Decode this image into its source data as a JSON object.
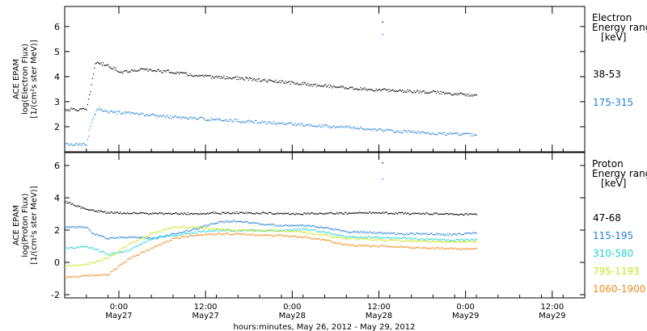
{
  "chart_data": [
    {
      "type": "scatter",
      "panel": "electron",
      "ylabel_lines": [
        "ACE EPAM",
        "log(Electron Flux)",
        "[1/(cm²s ster MeV)]"
      ],
      "ylim": [
        1,
        6.8
      ],
      "yticks": [
        2,
        3,
        4,
        5,
        6
      ],
      "legend_title_lines": [
        "Electron",
        "Energy ranges",
        "[keV]"
      ],
      "series": [
        {
          "name": "38-53",
          "color": "#000000",
          "points": [
            [
              0.0,
              2.7
            ],
            [
              1.0,
              2.7
            ],
            [
              1.2,
              3.6
            ],
            [
              1.4,
              4.6
            ],
            [
              2.0,
              4.45
            ],
            [
              2.6,
              4.2
            ],
            [
              3.5,
              4.3
            ],
            [
              5.0,
              4.2
            ],
            [
              6.0,
              4.05
            ],
            [
              8.0,
              3.95
            ],
            [
              10.0,
              3.8
            ],
            [
              12.0,
              3.65
            ],
            [
              14.0,
              3.5
            ],
            [
              17.0,
              3.4
            ],
            [
              18.5,
              3.3
            ],
            [
              19.0,
              3.3
            ]
          ],
          "spike": [
            14.65,
            6.2
          ]
        },
        {
          "name": "175-315",
          "color": "#1f7fd6",
          "points": [
            [
              0.0,
              1.3
            ],
            [
              1.0,
              1.3
            ],
            [
              1.2,
              2.2
            ],
            [
              1.5,
              2.75
            ],
            [
              2.0,
              2.6
            ],
            [
              3.0,
              2.55
            ],
            [
              5.0,
              2.4
            ],
            [
              7.0,
              2.3
            ],
            [
              10.0,
              2.15
            ],
            [
              13.0,
              2.0
            ],
            [
              15.0,
              1.85
            ],
            [
              17.0,
              1.75
            ],
            [
              19.0,
              1.7
            ]
          ],
          "spike": [
            14.65,
            5.7
          ]
        }
      ]
    },
    {
      "type": "scatter",
      "panel": "proton",
      "ylabel_lines": [
        "ACE EPAM",
        "log(Proton Flux)",
        "[1/(cm²s ster MeV)]"
      ],
      "ylim": [
        -2.2,
        6.8
      ],
      "yticks": [
        -2,
        0,
        2,
        4,
        6
      ],
      "legend_title_lines": [
        "Proton",
        "Energy ranges",
        "[keV]"
      ],
      "series": [
        {
          "name": "47-68",
          "color": "#000000",
          "points": [
            [
              0.0,
              3.8
            ],
            [
              1.0,
              3.3
            ],
            [
              2.0,
              3.1
            ],
            [
              4.0,
              3.05
            ],
            [
              6.0,
              3.05
            ],
            [
              8.0,
              3.1
            ],
            [
              10.0,
              3.05
            ],
            [
              12.0,
              3.05
            ],
            [
              14.0,
              3.1
            ],
            [
              16.0,
              3.05
            ],
            [
              19.0,
              3.0
            ]
          ],
          "spike": [
            14.65,
            6.2
          ]
        },
        {
          "name": "115-195",
          "color": "#1f7fd6",
          "points": [
            [
              0.0,
              2.2
            ],
            [
              1.0,
              2.2
            ],
            [
              1.3,
              1.8
            ],
            [
              2.0,
              1.5
            ],
            [
              3.0,
              1.6
            ],
            [
              4.0,
              1.5
            ],
            [
              5.0,
              1.8
            ],
            [
              6.0,
              2.1
            ],
            [
              7.0,
              2.5
            ],
            [
              8.0,
              2.6
            ],
            [
              9.0,
              2.4
            ],
            [
              10.0,
              2.3
            ],
            [
              11.0,
              2.3
            ],
            [
              12.0,
              2.2
            ],
            [
              13.0,
              1.9
            ],
            [
              14.0,
              1.9
            ],
            [
              15.0,
              1.8
            ],
            [
              16.0,
              1.8
            ],
            [
              18.0,
              1.75
            ],
            [
              19.0,
              1.85
            ]
          ],
          "spike": [
            14.65,
            5.2
          ]
        },
        {
          "name": "310-580",
          "color": "#22d1d1",
          "points": [
            [
              0.0,
              0.9
            ],
            [
              1.0,
              1.0
            ],
            [
              1.5,
              0.8
            ],
            [
              2.0,
              0.5
            ],
            [
              3.0,
              0.8
            ],
            [
              4.0,
              1.5
            ],
            [
              5.0,
              1.7
            ],
            [
              6.0,
              1.9
            ],
            [
              7.0,
              2.0
            ],
            [
              8.0,
              2.0
            ],
            [
              9.0,
              2.0
            ],
            [
              10.0,
              2.0
            ],
            [
              11.0,
              2.1
            ],
            [
              12.0,
              1.9
            ],
            [
              13.0,
              1.6
            ],
            [
              14.0,
              1.6
            ],
            [
              16.0,
              1.5
            ],
            [
              18.0,
              1.4
            ],
            [
              19.0,
              1.45
            ]
          ]
        },
        {
          "name": "795-1193",
          "color": "#c8e61e",
          "points": [
            [
              0.0,
              -0.2
            ],
            [
              1.0,
              -0.1
            ],
            [
              2.0,
              0.3
            ],
            [
              3.0,
              1.2
            ],
            [
              4.0,
              1.8
            ],
            [
              5.0,
              2.2
            ],
            [
              6.0,
              2.2
            ],
            [
              7.0,
              2.1
            ],
            [
              8.0,
              2.0
            ],
            [
              9.0,
              2.0
            ],
            [
              10.0,
              2.0
            ],
            [
              11.0,
              1.9
            ],
            [
              12.0,
              1.7
            ],
            [
              13.0,
              1.5
            ],
            [
              15.0,
              1.4
            ],
            [
              17.0,
              1.3
            ],
            [
              19.0,
              1.3
            ]
          ]
        },
        {
          "name": "1060-1900",
          "color": "#f08a1a",
          "points": [
            [
              0.0,
              -0.9
            ],
            [
              1.0,
              -0.8
            ],
            [
              2.0,
              -0.7
            ],
            [
              3.0,
              0.3
            ],
            [
              4.0,
              0.9
            ],
            [
              5.0,
              1.5
            ],
            [
              6.0,
              1.7
            ],
            [
              7.0,
              1.8
            ],
            [
              8.0,
              1.8
            ],
            [
              9.0,
              1.7
            ],
            [
              10.0,
              1.7
            ],
            [
              11.0,
              1.6
            ],
            [
              12.0,
              1.4
            ],
            [
              13.0,
              1.1
            ],
            [
              15.0,
              1.0
            ],
            [
              17.0,
              0.9
            ],
            [
              19.0,
              0.85
            ]
          ]
        }
      ]
    }
  ],
  "x_axis": {
    "xlim": [
      0,
      24
    ],
    "tick_labels": [
      {
        "x": 2.5,
        "lines": [
          "0:00",
          "May27"
        ]
      },
      {
        "x": 6.5,
        "lines": [
          "12:00",
          "May27"
        ]
      },
      {
        "x": 10.5,
        "lines": [
          "0:00",
          "May28"
        ]
      },
      {
        "x": 14.5,
        "lines": [
          "12:00",
          "May28"
        ]
      },
      {
        "x": 18.5,
        "lines": [
          "0:00",
          "May29"
        ]
      },
      {
        "x": 22.5,
        "lines": [
          "12:00",
          "May29"
        ]
      }
    ],
    "label": "hours:minutes, May 26, 2012 - May 29, 2012"
  }
}
